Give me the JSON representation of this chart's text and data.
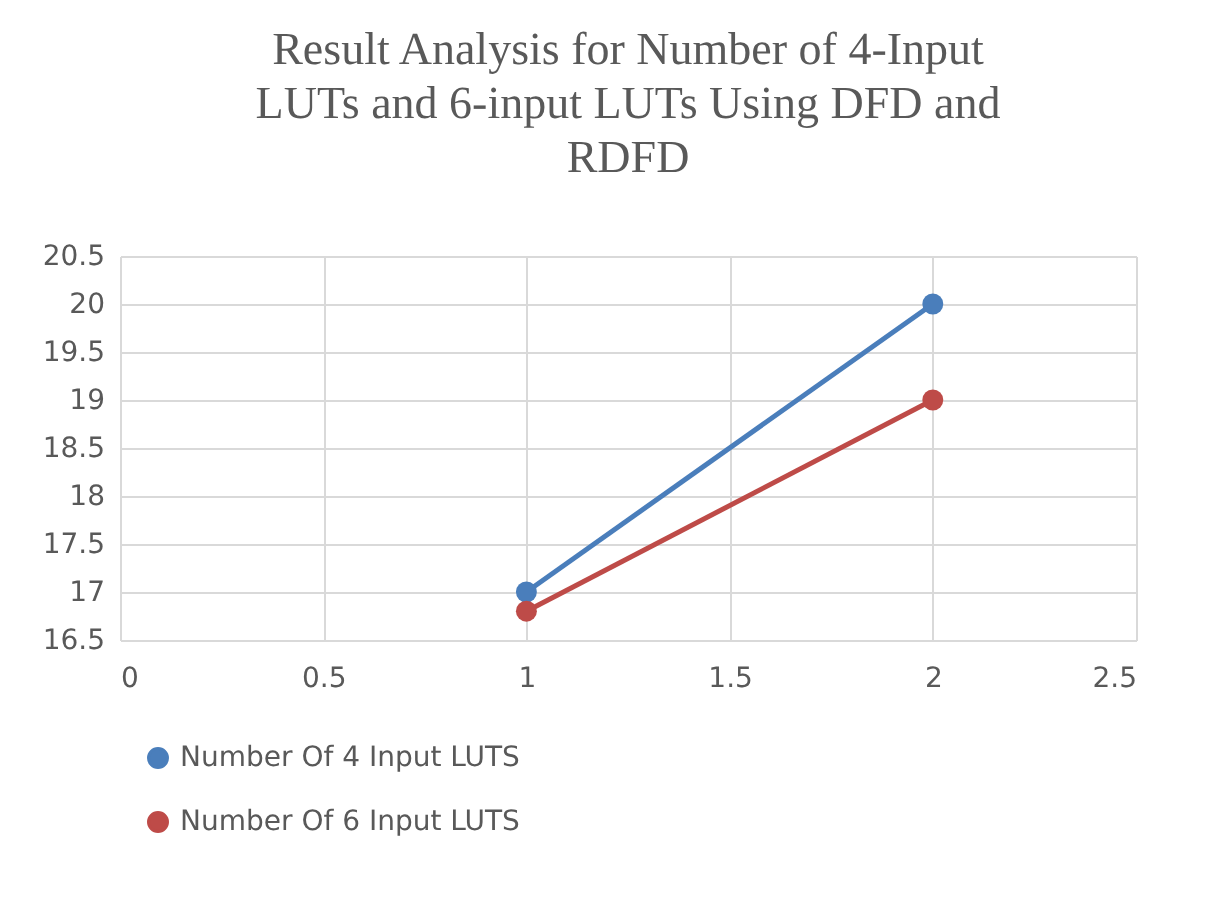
{
  "chart_data": {
    "type": "line",
    "title": "Result Analysis for Number of 4-Input LUTs and 6-input LUTs Using DFD and RDFD",
    "x": [
      1,
      2
    ],
    "series": [
      {
        "name": "Number Of 4 Input LUTS",
        "color": "#4a7ebb",
        "values": [
          17,
          20
        ]
      },
      {
        "name": "Number Of 6 Input LUTS",
        "color": "#be4b48",
        "values": [
          16.8,
          19
        ]
      }
    ],
    "xlim": [
      0,
      2.5
    ],
    "xticks": [
      0,
      0.5,
      1,
      1.5,
      2,
      2.5
    ],
    "ylim": [
      16.5,
      20.5
    ],
    "yticks": [
      16.5,
      17,
      17.5,
      18,
      18.5,
      19,
      19.5,
      20,
      20.5
    ],
    "grid": true,
    "legend": "bottom",
    "marker": "circle",
    "line_style": "solid"
  }
}
